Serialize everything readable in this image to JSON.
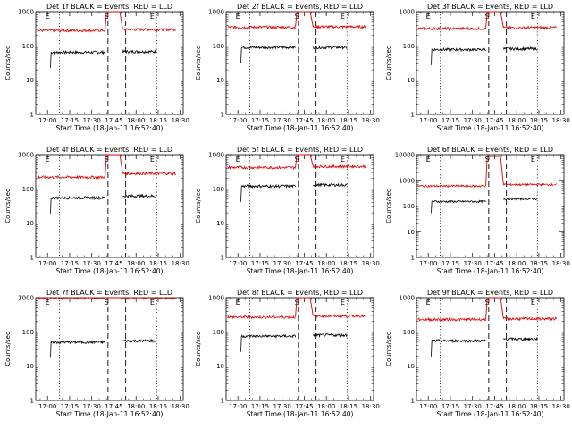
{
  "chart_data": [
    {
      "type": "line",
      "title": "Det 1f BLACK = Events, RED = LLD",
      "xlabel": "Start Time (18-Jan-11 16:52:40)",
      "ylabel": "Counts/sec",
      "yscale": "log",
      "ylim": [
        1,
        1000
      ],
      "yticks": [
        "1",
        "10",
        "100",
        "1000"
      ],
      "x_ticks": [
        "17:00",
        "17:15",
        "17:30",
        "17:45",
        "18:00",
        "18:15",
        "18:30"
      ],
      "markers": [
        "E",
        "S",
        "E"
      ],
      "series": [
        {
          "name": "Events",
          "color": "#000000",
          "segments": [
            {
              "x": [
                "17:02",
                "17:39"
              ],
              "level": 65
            },
            {
              "x": [
                "17:51",
                "18:14"
              ],
              "level": 68
            }
          ]
        },
        {
          "name": "LLD",
          "color": "#e00000",
          "segments": [
            {
              "x": [
                "16:53",
                "17:39"
              ],
              "level": 280
            },
            {
              "x": [
                "17:51",
                "18:27"
              ],
              "level": 300
            }
          ],
          "spike": 1000
        }
      ]
    },
    {
      "type": "line",
      "title": "Det 2f BLACK = Events, RED = LLD",
      "xlabel": "Start Time (18-Jan-11 16:52:40)",
      "ylabel": "Counts/sec",
      "yscale": "log",
      "ylim": [
        1,
        1000
      ],
      "yticks": [
        "1",
        "10",
        "100",
        "1000"
      ],
      "x_ticks": [
        "17:00",
        "17:15",
        "17:30",
        "17:45",
        "18:00",
        "18:15",
        "18:30"
      ],
      "markers": [
        "E",
        "S",
        "E"
      ],
      "series": [
        {
          "name": "Events",
          "color": "#000000",
          "segments": [
            {
              "x": [
                "17:02",
                "17:39"
              ],
              "level": 90
            },
            {
              "x": [
                "17:51",
                "18:14"
              ],
              "level": 90
            }
          ]
        },
        {
          "name": "LLD",
          "color": "#e00000",
          "segments": [
            {
              "x": [
                "16:53",
                "17:39"
              ],
              "level": 350
            },
            {
              "x": [
                "17:51",
                "18:27"
              ],
              "level": 360
            }
          ],
          "spike": 1000
        }
      ]
    },
    {
      "type": "line",
      "title": "Det 3f BLACK = Events, RED = LLD",
      "xlabel": "Start Time (18-Jan-11 16:52:40)",
      "ylabel": "Counts/sec",
      "yscale": "log",
      "ylim": [
        1,
        1000
      ],
      "yticks": [
        "1",
        "10",
        "100",
        "1000"
      ],
      "x_ticks": [
        "17:00",
        "17:15",
        "17:30",
        "17:45",
        "18:00",
        "18:15",
        "18:30"
      ],
      "markers": [
        "E",
        "S",
        "E"
      ],
      "series": [
        {
          "name": "Events",
          "color": "#000000",
          "segments": [
            {
              "x": [
                "17:02",
                "17:39"
              ],
              "level": 78
            },
            {
              "x": [
                "17:51",
                "18:14"
              ],
              "level": 82
            }
          ]
        },
        {
          "name": "LLD",
          "color": "#e00000",
          "segments": [
            {
              "x": [
                "16:53",
                "17:39"
              ],
              "level": 320
            },
            {
              "x": [
                "17:51",
                "18:27"
              ],
              "level": 340
            }
          ],
          "spike": 1000
        }
      ]
    },
    {
      "type": "line",
      "title": "Det 4f BLACK = Events, RED = LLD",
      "xlabel": "Start Time (18-Jan-11 16:52:40)",
      "ylabel": "Counts/sec",
      "yscale": "log",
      "ylim": [
        1,
        1000
      ],
      "yticks": [
        "1",
        "10",
        "100",
        "1000"
      ],
      "x_ticks": [
        "17:00",
        "17:15",
        "17:30",
        "17:45",
        "18:00",
        "18:15",
        "18:30"
      ],
      "markers": [
        "E",
        "S",
        "E"
      ],
      "series": [
        {
          "name": "Events",
          "color": "#000000",
          "segments": [
            {
              "x": [
                "17:02",
                "17:39"
              ],
              "level": 55
            },
            {
              "x": [
                "17:51",
                "18:14"
              ],
              "level": 62
            }
          ]
        },
        {
          "name": "LLD",
          "color": "#e00000",
          "segments": [
            {
              "x": [
                "16:53",
                "17:39"
              ],
              "level": 220
            },
            {
              "x": [
                "17:51",
                "18:27"
              ],
              "level": 280
            }
          ],
          "spike": 1000
        }
      ]
    },
    {
      "type": "line",
      "title": "Det 5f BLACK = Events, RED = LLD",
      "xlabel": "Start Time (18-Jan-11 16:52:40)",
      "ylabel": "Counts/sec",
      "yscale": "log",
      "ylim": [
        1,
        1000
      ],
      "yticks": [
        "1",
        "10",
        "100",
        "1000"
      ],
      "x_ticks": [
        "17:00",
        "17:15",
        "17:30",
        "17:45",
        "18:00",
        "18:15",
        "18:30"
      ],
      "markers": [
        "E",
        "S",
        "E"
      ],
      "series": [
        {
          "name": "Events",
          "color": "#000000",
          "segments": [
            {
              "x": [
                "17:02",
                "17:39"
              ],
              "level": 120
            },
            {
              "x": [
                "17:51",
                "18:14"
              ],
              "level": 130
            }
          ]
        },
        {
          "name": "LLD",
          "color": "#e00000",
          "segments": [
            {
              "x": [
                "16:53",
                "17:39"
              ],
              "level": 420
            },
            {
              "x": [
                "17:51",
                "18:27"
              ],
              "level": 450
            }
          ],
          "spike": 1000
        }
      ]
    },
    {
      "type": "line",
      "title": "Det 6f BLACK = Events, RED = LLD",
      "xlabel": "Start Time (18-Jan-11 16:52:40)",
      "ylabel": "Counts/sec",
      "yscale": "log",
      "ylim": [
        1,
        10000
      ],
      "yticks": [
        "1",
        "10",
        "100",
        "1000",
        "10000"
      ],
      "x_ticks": [
        "17:00",
        "17:15",
        "17:30",
        "17:45",
        "18:00",
        "18:15",
        "18:30"
      ],
      "markers": [
        "E",
        "S",
        "E"
      ],
      "series": [
        {
          "name": "Events",
          "color": "#000000",
          "segments": [
            {
              "x": [
                "17:02",
                "17:39"
              ],
              "level": 150
            },
            {
              "x": [
                "17:51",
                "18:14"
              ],
              "level": 190
            }
          ]
        },
        {
          "name": "LLD",
          "color": "#e00000",
          "segments": [
            {
              "x": [
                "16:53",
                "17:39"
              ],
              "level": 600
            },
            {
              "x": [
                "17:51",
                "18:27"
              ],
              "level": 680
            }
          ],
          "spike": 8500
        }
      ]
    },
    {
      "type": "line",
      "title": "Det 7f BLACK = Events, RED = LLD",
      "xlabel": "Start Time (18-Jan-11 16:52:40)",
      "ylabel": "Counts/sec",
      "yscale": "log",
      "ylim": [
        1,
        1000
      ],
      "yticks": [
        "1",
        "10",
        "100",
        "1000"
      ],
      "x_ticks": [
        "17:00",
        "17:15",
        "17:30",
        "17:45",
        "18:00",
        "18:15",
        "18:30"
      ],
      "markers": [
        "E",
        "S",
        "E"
      ],
      "series": [
        {
          "name": "Events",
          "color": "#000000",
          "segments": [
            {
              "x": [
                "17:02",
                "17:39"
              ],
              "level": 50
            },
            {
              "x": [
                "17:51",
                "18:14"
              ],
              "level": 55
            }
          ]
        },
        {
          "name": "LLD",
          "color": "#e00000",
          "segments": [
            {
              "x": [
                "16:53",
                "17:39"
              ],
              "level": 1000
            },
            {
              "x": [
                "17:51",
                "18:27"
              ],
              "level": 1000
            }
          ],
          "spike": 1000
        }
      ]
    },
    {
      "type": "line",
      "title": "Det 8f BLACK = Events, RED = LLD",
      "xlabel": "Start Time (18-Jan-11 16:52:40)",
      "ylabel": "Counts/sec",
      "yscale": "log",
      "ylim": [
        1,
        1000
      ],
      "yticks": [
        "1",
        "10",
        "100",
        "1000"
      ],
      "x_ticks": [
        "17:00",
        "17:15",
        "17:30",
        "17:45",
        "18:00",
        "18:15",
        "18:30"
      ],
      "markers": [
        "E",
        "S",
        "E"
      ],
      "series": [
        {
          "name": "Events",
          "color": "#000000",
          "segments": [
            {
              "x": [
                "17:02",
                "17:39"
              ],
              "level": 75
            },
            {
              "x": [
                "17:51",
                "18:14"
              ],
              "level": 80
            }
          ]
        },
        {
          "name": "LLD",
          "color": "#e00000",
          "segments": [
            {
              "x": [
                "16:53",
                "17:39"
              ],
              "level": 270
            },
            {
              "x": [
                "17:51",
                "18:27"
              ],
              "level": 290
            }
          ],
          "spike": 1000
        }
      ]
    },
    {
      "type": "line",
      "title": "Det 9f BLACK = Events, RED = LLD",
      "xlabel": "Start Time (18-Jan-11 16:52:40)",
      "ylabel": "Counts/sec",
      "yscale": "log",
      "ylim": [
        1,
        1000
      ],
      "yticks": [
        "1",
        "10",
        "100",
        "1000"
      ],
      "x_ticks": [
        "17:00",
        "17:15",
        "17:30",
        "17:45",
        "18:00",
        "18:15",
        "18:30"
      ],
      "markers": [
        "E",
        "S",
        "E"
      ],
      "series": [
        {
          "name": "Events",
          "color": "#000000",
          "segments": [
            {
              "x": [
                "17:02",
                "17:39"
              ],
              "level": 55
            },
            {
              "x": [
                "17:51",
                "18:14"
              ],
              "level": 62
            }
          ]
        },
        {
          "name": "LLD",
          "color": "#e00000",
          "segments": [
            {
              "x": [
                "16:53",
                "17:39"
              ],
              "level": 230
            },
            {
              "x": [
                "17:51",
                "18:27"
              ],
              "level": 240
            }
          ],
          "spike": 1000
        }
      ]
    }
  ]
}
